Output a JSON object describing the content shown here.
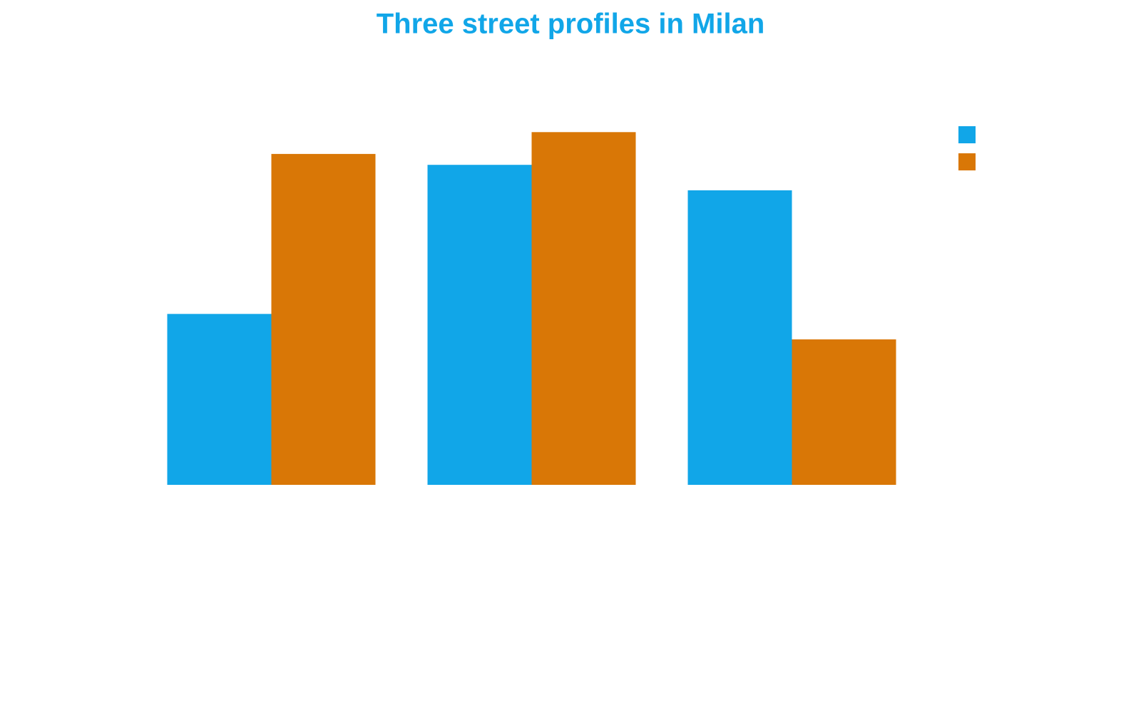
{
  "chart_data": {
    "type": "bar",
    "title": "Three street profiles in Milan",
    "categories": [
      null,
      null,
      null
    ],
    "series": [
      {
        "color": "#11a6e8",
        "values": [
          47,
          88,
          81
        ]
      },
      {
        "color": "#d97706",
        "values": [
          91,
          97,
          40
        ]
      }
    ],
    "ylim": [
      0,
      100
    ],
    "legend": "upper right"
  }
}
